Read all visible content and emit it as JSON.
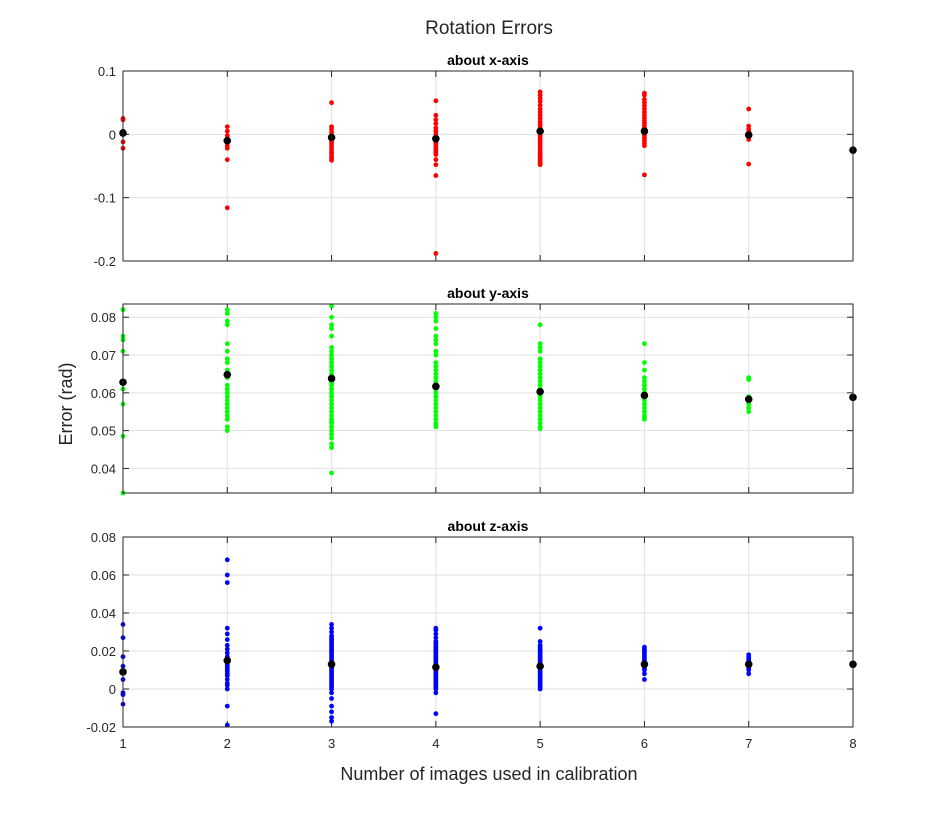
{
  "figure": {
    "title": "Rotation Errors",
    "xlabel": "Number of images used in calibration",
    "ylabel": "Error (rad)"
  },
  "colors": {
    "x_points": "#ff0000",
    "y_points": "#00ff00",
    "z_points": "#0000ff",
    "mean_points": "#000000",
    "grid": "#e1e1e1",
    "axes": "#262626"
  },
  "chart_data": [
    {
      "type": "scatter",
      "title": "about x-axis",
      "xlim": [
        1,
        8
      ],
      "ylim": [
        -0.2,
        0.1
      ],
      "xticks": [
        1,
        2,
        3,
        4,
        5,
        6,
        7,
        8
      ],
      "yticks": [
        -0.2,
        -0.1,
        0,
        0.1
      ],
      "ytick_labels": [
        "-0.2",
        "-0.1",
        "0",
        "0.1"
      ],
      "grid": true,
      "series": [
        {
          "role": "samples",
          "color": "#ff0000",
          "x": [
            1,
            1,
            1,
            1,
            1,
            2,
            2,
            2,
            2,
            2,
            2,
            2,
            2,
            2,
            3,
            3,
            3,
            3,
            3,
            3,
            3,
            3,
            3,
            3,
            3,
            3,
            3,
            3,
            3,
            3,
            4,
            4,
            4,
            4,
            4,
            4,
            4,
            4,
            4,
            4,
            4,
            4,
            4,
            4,
            4,
            4,
            4,
            4,
            4,
            4,
            5,
            5,
            5,
            5,
            5,
            5,
            5,
            5,
            5,
            5,
            5,
            5,
            5,
            5,
            5,
            5,
            5,
            5,
            5,
            5,
            5,
            5,
            5,
            5,
            5,
            5,
            5,
            5,
            5,
            6,
            6,
            6,
            6,
            6,
            6,
            6,
            6,
            6,
            6,
            6,
            6,
            6,
            6,
            6,
            6,
            6,
            6,
            6,
            6,
            6,
            7,
            7,
            7,
            7,
            7,
            7,
            7
          ],
          "y": [
            0.025,
            0.023,
            0.005,
            -0.012,
            -0.022,
            0.012,
            0.005,
            -0.002,
            -0.008,
            -0.013,
            -0.018,
            -0.022,
            -0.04,
            -0.116,
            0.05,
            0.012,
            0.008,
            0.003,
            -0.002,
            -0.006,
            -0.01,
            -0.013,
            -0.016,
            -0.02,
            -0.024,
            -0.028,
            -0.031,
            -0.035,
            -0.038,
            -0.041,
            0.053,
            0.03,
            0.023,
            0.017,
            0.01,
            0.005,
            0.0,
            -0.004,
            -0.008,
            -0.012,
            -0.015,
            -0.019,
            -0.022,
            -0.025,
            -0.028,
            -0.032,
            -0.04,
            -0.048,
            -0.065,
            -0.188,
            0.067,
            0.062,
            0.057,
            0.052,
            0.046,
            0.04,
            0.035,
            0.03,
            0.025,
            0.02,
            0.016,
            0.012,
            0.008,
            0.004,
            0.001,
            -0.003,
            -0.007,
            -0.011,
            -0.015,
            -0.019,
            -0.023,
            -0.027,
            -0.03,
            -0.033,
            -0.036,
            -0.039,
            -0.042,
            -0.045,
            -0.048,
            0.065,
            0.062,
            0.055,
            0.05,
            0.045,
            0.04,
            0.035,
            0.03,
            0.026,
            0.022,
            0.018,
            0.014,
            0.01,
            0.006,
            0.002,
            -0.002,
            -0.006,
            -0.01,
            -0.014,
            -0.018,
            -0.064,
            0.04,
            0.013,
            0.008,
            0.004,
            -0.003,
            -0.008,
            -0.047
          ]
        },
        {
          "role": "mean",
          "color": "#000000",
          "x": [
            1,
            2,
            3,
            4,
            5,
            6,
            7,
            8
          ],
          "y": [
            0.002,
            -0.01,
            -0.005,
            -0.007,
            0.005,
            0.005,
            -0.001,
            -0.025
          ]
        }
      ]
    },
    {
      "type": "scatter",
      "title": "about y-axis",
      "xlim": [
        1,
        8
      ],
      "ylim": [
        0.0335,
        0.0835
      ],
      "xticks": [
        1,
        2,
        3,
        4,
        5,
        6,
        7,
        8
      ],
      "yticks": [
        0.04,
        0.05,
        0.06,
        0.07,
        0.08
      ],
      "ytick_labels": [
        "0.04",
        "0.05",
        "0.06",
        "0.07",
        "0.08"
      ],
      "grid": true,
      "series": [
        {
          "role": "samples",
          "color": "#00ff00",
          "x": [
            1,
            1,
            1,
            1,
            1,
            1,
            1,
            1,
            2,
            2,
            2,
            2,
            2,
            2,
            2,
            2,
            2,
            2,
            2,
            2,
            2,
            2,
            2,
            2,
            2,
            2,
            2,
            2,
            2,
            2,
            3,
            3,
            3,
            3,
            3,
            3,
            3,
            3,
            3,
            3,
            3,
            3,
            3,
            3,
            3,
            3,
            3,
            3,
            3,
            3,
            3,
            3,
            3,
            3,
            3,
            3,
            3,
            3,
            3,
            3,
            3,
            3,
            3,
            3,
            3,
            4,
            4,
            4,
            4,
            4,
            4,
            4,
            4,
            4,
            4,
            4,
            4,
            4,
            4,
            4,
            4,
            4,
            4,
            4,
            4,
            4,
            4,
            4,
            4,
            4,
            4,
            4,
            4,
            5,
            5,
            5,
            5,
            5,
            5,
            5,
            5,
            5,
            5,
            5,
            5,
            5,
            5,
            5,
            5,
            5,
            5,
            5,
            5,
            5,
            5,
            5,
            5,
            6,
            6,
            6,
            6,
            6,
            6,
            6,
            6,
            6,
            6,
            6,
            6,
            6,
            6,
            6,
            6,
            7,
            7,
            7,
            7,
            7,
            7,
            7
          ],
          "y": [
            0.082,
            0.075,
            0.074,
            0.071,
            0.061,
            0.057,
            0.0485,
            0.0335,
            0.082,
            0.081,
            0.079,
            0.078,
            0.073,
            0.071,
            0.069,
            0.068,
            0.066,
            0.064,
            0.062,
            0.061,
            0.06,
            0.059,
            0.058,
            0.057,
            0.056,
            0.055,
            0.054,
            0.053,
            0.051,
            0.05,
            0.0465,
            0.0388,
            0.083,
            0.08,
            0.078,
            0.077,
            0.075,
            0.072,
            0.071,
            0.07,
            0.069,
            0.068,
            0.067,
            0.066,
            0.065,
            0.064,
            0.063,
            0.0625,
            0.062,
            0.061,
            0.06,
            0.059,
            0.058,
            0.057,
            0.056,
            0.055,
            0.054,
            0.053,
            0.0525,
            0.052,
            0.051,
            0.05,
            0.049,
            0.048,
            0.0455,
            0.081,
            0.08,
            0.079,
            0.077,
            0.075,
            0.074,
            0.073,
            0.071,
            0.07,
            0.068,
            0.067,
            0.066,
            0.065,
            0.064,
            0.063,
            0.062,
            0.061,
            0.06,
            0.059,
            0.058,
            0.057,
            0.056,
            0.055,
            0.054,
            0.053,
            0.052,
            0.0515,
            0.051,
            0.078,
            0.073,
            0.072,
            0.071,
            0.069,
            0.068,
            0.067,
            0.066,
            0.065,
            0.064,
            0.063,
            0.062,
            0.061,
            0.06,
            0.059,
            0.058,
            0.057,
            0.056,
            0.055,
            0.054,
            0.053,
            0.052,
            0.051,
            0.0505,
            0.073,
            0.068,
            0.066,
            0.064,
            0.063,
            0.062,
            0.061,
            0.06,
            0.059,
            0.058,
            0.057,
            0.056,
            0.055,
            0.054,
            0.0535,
            0.053,
            0.064,
            0.0635,
            0.059,
            0.058,
            0.057,
            0.056,
            0.055
          ]
        },
        {
          "role": "mean",
          "color": "#000000",
          "x": [
            1,
            2,
            3,
            4,
            5,
            6,
            7,
            8
          ],
          "y": [
            0.0628,
            0.0648,
            0.0638,
            0.0617,
            0.0603,
            0.0593,
            0.0583,
            0.0588
          ]
        }
      ]
    },
    {
      "type": "scatter",
      "title": "about z-axis",
      "xlim": [
        1,
        8
      ],
      "ylim": [
        -0.02,
        0.08
      ],
      "xticks": [
        1,
        2,
        3,
        4,
        5,
        6,
        7,
        8
      ],
      "xtick_labels": [
        "1",
        "2",
        "3",
        "4",
        "5",
        "6",
        "7",
        "8"
      ],
      "yticks": [
        -0.02,
        0,
        0.02,
        0.04,
        0.06,
        0.08
      ],
      "ytick_labels": [
        "-0.02",
        "0",
        "0.02",
        "0.04",
        "0.06",
        "0.08"
      ],
      "grid": true,
      "series": [
        {
          "role": "samples",
          "color": "#0000ff",
          "x": [
            1,
            1,
            1,
            1,
            1,
            1,
            1,
            1,
            2,
            2,
            2,
            2,
            2,
            2,
            2,
            2,
            2,
            2,
            2,
            2,
            2,
            2,
            2,
            2,
            2,
            2,
            2,
            2,
            2,
            2,
            2,
            2,
            2,
            2,
            3,
            3,
            3,
            3,
            3,
            3,
            3,
            3,
            3,
            3,
            3,
            3,
            3,
            3,
            3,
            3,
            3,
            3,
            3,
            3,
            3,
            3,
            3,
            3,
            3,
            3,
            3,
            3,
            3,
            3,
            3,
            3,
            3,
            3,
            3,
            3,
            3,
            3,
            4,
            4,
            4,
            4,
            4,
            4,
            4,
            4,
            4,
            4,
            4,
            4,
            4,
            4,
            4,
            4,
            4,
            4,
            4,
            4,
            4,
            4,
            4,
            4,
            4,
            4,
            4,
            4,
            4,
            4,
            4,
            4,
            5,
            5,
            5,
            5,
            5,
            5,
            5,
            5,
            5,
            5,
            5,
            5,
            5,
            5,
            5,
            5,
            5,
            5,
            5,
            5,
            5,
            5,
            5,
            5,
            5,
            5,
            6,
            6,
            6,
            6,
            6,
            6,
            6,
            6,
            6,
            6,
            6,
            6,
            6,
            6,
            6,
            7,
            7,
            7,
            7,
            7,
            7,
            7,
            7,
            7,
            7
          ],
          "y": [
            0.034,
            0.027,
            0.017,
            0.012,
            0.005,
            -0.002,
            -0.003,
            -0.008,
            0.068,
            0.06,
            0.056,
            0.032,
            0.029,
            0.026,
            0.023,
            0.021,
            0.019,
            0.017,
            0.016,
            0.015,
            0.014,
            0.013,
            0.012,
            0.011,
            0.01,
            0.009,
            0.008,
            0.007,
            0.005,
            0.003,
            0.002,
            0.0,
            -0.009,
            -0.019,
            0.034,
            0.032,
            0.03,
            0.028,
            0.027,
            0.026,
            0.025,
            0.024,
            0.023,
            0.022,
            0.021,
            0.02,
            0.019,
            0.018,
            0.017,
            0.016,
            0.015,
            0.014,
            0.013,
            0.012,
            0.011,
            0.01,
            0.009,
            0.008,
            0.007,
            0.006,
            0.005,
            0.004,
            0.003,
            0.002,
            0.001,
            0.0,
            -0.002,
            -0.005,
            -0.009,
            -0.012,
            -0.015,
            -0.017,
            0.032,
            0.031,
            0.029,
            0.027,
            0.025,
            0.024,
            0.023,
            0.022,
            0.021,
            0.02,
            0.019,
            0.018,
            0.017,
            0.016,
            0.015,
            0.014,
            0.013,
            0.012,
            0.011,
            0.01,
            0.009,
            0.008,
            0.007,
            0.006,
            0.005,
            0.004,
            0.003,
            0.002,
            0.001,
            0.0,
            -0.002,
            -0.013,
            0.032,
            0.025,
            0.023,
            0.022,
            0.021,
            0.02,
            0.019,
            0.018,
            0.017,
            0.016,
            0.015,
            0.014,
            0.013,
            0.012,
            0.011,
            0.01,
            0.009,
            0.008,
            0.007,
            0.006,
            0.005,
            0.004,
            0.003,
            0.002,
            0.001,
            0.0,
            0.022,
            0.021,
            0.02,
            0.019,
            0.018,
            0.017,
            0.016,
            0.015,
            0.014,
            0.013,
            0.012,
            0.011,
            0.01,
            0.008,
            0.005,
            0.018,
            0.017,
            0.016,
            0.015,
            0.014,
            0.013,
            0.012,
            0.011,
            0.01,
            0.008
          ]
        },
        {
          "role": "mean",
          "color": "#000000",
          "x": [
            1,
            2,
            3,
            4,
            5,
            6,
            7,
            8
          ],
          "y": [
            0.009,
            0.015,
            0.013,
            0.0115,
            0.012,
            0.013,
            0.013,
            0.013
          ]
        }
      ]
    }
  ]
}
